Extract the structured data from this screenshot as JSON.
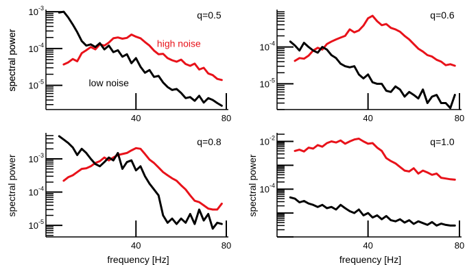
{
  "figure": {
    "xlabel": "frequency [Hz]",
    "ylabel": "spectral power"
  },
  "colors": {
    "high_noise": "#e8121a",
    "low_noise": "#000000"
  },
  "chart_data": [
    {
      "type": "line",
      "annotation": "q=0.5",
      "xlim": [
        5,
        80
      ],
      "ylog": true,
      "ylim": [
        2.2e-06,
        0.00105
      ],
      "yticks": [
        {
          "base": "10",
          "exp": "-3",
          "value": 0.001
        },
        {
          "base": "10",
          "exp": "-4",
          "value": 0.0001
        },
        {
          "base": "10",
          "exp": "-5",
          "value": 1e-05
        }
      ],
      "xticks": [
        {
          "label": "40",
          "value": 40
        },
        {
          "label": "80",
          "value": 80
        }
      ],
      "grid": false,
      "xlabel": "",
      "ylabel": "spectral power",
      "series_labels": [
        {
          "text": "high noise",
          "series": 0,
          "pos": [
            59,
            0.00011
          ]
        },
        {
          "text": "low noise",
          "series": 1,
          "pos": [
            28,
            9.5e-06
          ]
        }
      ],
      "series": [
        {
          "name": "high noise",
          "color": "#e8121a",
          "x": [
            8,
            10,
            12,
            14,
            16,
            18,
            20,
            22,
            24,
            26,
            28,
            30,
            32,
            34,
            36,
            38,
            40,
            42,
            44,
            46,
            48,
            50,
            52,
            54,
            56,
            58,
            60,
            62,
            64,
            66,
            68,
            70,
            72,
            74,
            76,
            78
          ],
          "y": [
            3.7e-05,
            4.2e-05,
            5.2e-05,
            4.5e-05,
            7.5e-05,
            9e-05,
            0.00011,
            9.5e-05,
            0.00013,
            0.00012,
            0.000145,
            0.00019,
            0.0002,
            0.000185,
            0.000195,
            0.00024,
            0.00021,
            0.00019,
            0.00015,
            0.00012,
            8.8e-05,
            7e-05,
            7.2e-05,
            5.5e-05,
            4.8e-05,
            4.4e-05,
            5e-05,
            3.8e-05,
            3.4e-05,
            3.9e-05,
            2.7e-05,
            3e-05,
            2.1e-05,
            1.9e-05,
            1.5e-05,
            1.4e-05
          ]
        },
        {
          "name": "low noise",
          "color": "#000000",
          "x": [
            6,
            8,
            10,
            12,
            14,
            16,
            18,
            20,
            22,
            24,
            26,
            28,
            30,
            32,
            34,
            36,
            38,
            40,
            42,
            44,
            46,
            48,
            50,
            52,
            54,
            56,
            58,
            60,
            62,
            64,
            66,
            68,
            70,
            72,
            74,
            76,
            78
          ],
          "y": [
            0.00095,
            0.001,
            0.0007,
            0.00045,
            0.00028,
            0.00016,
            0.00012,
            0.00013,
            0.00011,
            0.00014,
            9.5e-05,
            0.00012,
            8e-05,
            9e-05,
            6e-05,
            7e-05,
            4e-05,
            5.5e-05,
            3.2e-05,
            2.2e-05,
            2.6e-05,
            1.7e-05,
            1.8e-05,
            1.2e-05,
            9e-06,
            7.5e-06,
            8e-06,
            6.2e-06,
            4.5e-06,
            4.8e-06,
            3.8e-06,
            5.2e-06,
            3.4e-06,
            4.5e-06,
            4e-06,
            3.3e-06,
            2.8e-06
          ]
        }
      ]
    },
    {
      "type": "line",
      "annotation": "q=0.6",
      "xlim": [
        5,
        80
      ],
      "ylog": true,
      "ylim": [
        2e-06,
        0.00095
      ],
      "yticks": [
        {
          "base": "10",
          "exp": "-4",
          "value": 0.0001
        },
        {
          "base": "10",
          "exp": "-5",
          "value": 1e-05
        }
      ],
      "xticks": [
        {
          "label": "40",
          "value": 40
        },
        {
          "label": "80",
          "value": 80
        }
      ],
      "grid": false,
      "xlabel": "",
      "ylabel": "spectral power",
      "series_labels": [],
      "series": [
        {
          "name": "high noise",
          "color": "#e8121a",
          "x": [
            8,
            10,
            12,
            14,
            16,
            18,
            20,
            22,
            24,
            26,
            28,
            30,
            32,
            34,
            36,
            38,
            40,
            42,
            44,
            46,
            48,
            50,
            52,
            54,
            56,
            58,
            60,
            62,
            64,
            66,
            68,
            70,
            72,
            74,
            76,
            78
          ],
          "y": [
            4.2e-05,
            5e-05,
            4.8e-05,
            5.8e-05,
            8e-05,
            9.5e-05,
            8.5e-05,
            0.00012,
            0.00014,
            0.00016,
            0.00018,
            0.0002,
            0.0003,
            0.00025,
            0.00028,
            0.00038,
            0.0006,
            0.0007,
            0.0005,
            0.00039,
            0.00042,
            0.00033,
            0.0003,
            0.00026,
            0.0002,
            0.00016,
            0.00012,
            9e-05,
            7.5e-05,
            6e-05,
            5.5e-05,
            4.5e-05,
            4e-05,
            3.2e-05,
            3.4e-05,
            3.1e-05
          ]
        },
        {
          "name": "low noise",
          "color": "#000000",
          "x": [
            6,
            8,
            10,
            12,
            14,
            16,
            18,
            20,
            22,
            24,
            26,
            28,
            30,
            32,
            34,
            36,
            38,
            40,
            42,
            44,
            46,
            48,
            50,
            52,
            54,
            56,
            58,
            60,
            62,
            64,
            66,
            68,
            70,
            72,
            74,
            76,
            78
          ],
          "y": [
            0.00014,
            0.00011,
            8e-05,
            0.00013,
            0.0001,
            8e-05,
            7e-05,
            0.0001,
            8.5e-05,
            6e-05,
            5e-05,
            3.5e-05,
            3e-05,
            2.8e-05,
            3e-05,
            1.8e-05,
            1.4e-05,
            1.8e-05,
            1.1e-05,
            1e-05,
            1e-05,
            6.5e-06,
            6e-06,
            8.5e-06,
            7e-06,
            4.5e-06,
            6e-06,
            5e-06,
            4e-06,
            7e-06,
            3e-06,
            4.5e-06,
            5e-06,
            3e-06,
            3e-06,
            2.2e-06,
            5e-06
          ]
        }
      ]
    },
    {
      "type": "line",
      "annotation": "q=0.8",
      "xlim": [
        5,
        80
      ],
      "ylog": true,
      "ylim": [
        4.5e-06,
        0.0055
      ],
      "yticks": [
        {
          "base": "10",
          "exp": "-3",
          "value": 0.001
        },
        {
          "base": "10",
          "exp": "-4",
          "value": 0.0001
        },
        {
          "base": "10",
          "exp": "-5",
          "value": 1e-05
        }
      ],
      "xticks": [
        {
          "label": "40",
          "value": 40
        },
        {
          "label": "80",
          "value": 80
        }
      ],
      "grid": false,
      "xlabel": "frequency [Hz]",
      "ylabel": "spectral power",
      "series_labels": [],
      "series": [
        {
          "name": "high noise",
          "color": "#e8121a",
          "x": [
            8,
            10,
            12,
            14,
            16,
            18,
            20,
            22,
            24,
            26,
            28,
            30,
            32,
            34,
            36,
            38,
            40,
            42,
            44,
            46,
            48,
            50,
            52,
            54,
            56,
            58,
            60,
            62,
            64,
            66,
            68,
            70,
            72,
            74,
            76,
            78
          ],
          "y": [
            0.00022,
            0.00028,
            0.00032,
            0.0004,
            0.0005,
            0.00052,
            0.0006,
            0.00075,
            0.00085,
            0.0011,
            0.0009,
            0.0011,
            0.0013,
            0.0014,
            0.0015,
            0.0018,
            0.0021,
            0.002,
            0.0014,
            0.00095,
            0.00075,
            0.00055,
            0.0004,
            0.00032,
            0.00026,
            0.00022,
            0.00016,
            0.00012,
            8e-05,
            5.5e-05,
            5e-05,
            4e-05,
            3.2e-05,
            3e-05,
            3e-05,
            4.5e-05
          ]
        },
        {
          "name": "low noise",
          "color": "#000000",
          "x": [
            6,
            8,
            10,
            12,
            14,
            16,
            18,
            20,
            22,
            24,
            26,
            28,
            30,
            32,
            34,
            36,
            38,
            40,
            42,
            44,
            46,
            48,
            50,
            52,
            54,
            56,
            58,
            60,
            62,
            64,
            66,
            68,
            70,
            72,
            74,
            76,
            78
          ],
          "y": [
            0.0048,
            0.0038,
            0.003,
            0.0022,
            0.0013,
            0.002,
            0.0015,
            0.001,
            0.0007,
            0.0006,
            0.0008,
            0.0011,
            0.0009,
            0.0015,
            0.0005,
            0.0008,
            0.0009,
            0.00045,
            0.0006,
            0.0003,
            0.00018,
            0.00012,
            8e-05,
            2e-05,
            1.2e-05,
            1.6e-05,
            1.1e-05,
            1.6e-05,
            1.2e-05,
            2.2e-05,
            1.1e-05,
            3e-05,
            1.4e-05,
            2.2e-05,
            8e-06,
            1.2e-05,
            1.1e-05
          ]
        }
      ]
    },
    {
      "type": "line",
      "annotation": "q=1.0",
      "xlim": [
        5,
        80
      ],
      "ylog": true,
      "ylim": [
        1e-06,
        0.02
      ],
      "yticks": [
        {
          "base": "10",
          "exp": "-2",
          "value": 0.01
        },
        {
          "base": "10",
          "exp": "-4",
          "value": 0.0001
        }
      ],
      "xticks": [
        {
          "label": "40",
          "value": 40
        },
        {
          "label": "80",
          "value": 80
        }
      ],
      "grid": false,
      "xlabel": "frequency [Hz]",
      "ylabel": "spectral power",
      "series_labels": [],
      "series": [
        {
          "name": "high noise",
          "color": "#e8121a",
          "x": [
            8,
            10,
            12,
            14,
            16,
            18,
            20,
            22,
            24,
            26,
            28,
            30,
            32,
            34,
            36,
            38,
            40,
            42,
            44,
            46,
            48,
            50,
            52,
            54,
            56,
            58,
            60,
            62,
            64,
            66,
            68,
            70,
            72,
            74,
            76,
            78
          ],
          "y": [
            0.004,
            0.0045,
            0.0038,
            0.0055,
            0.005,
            0.007,
            0.006,
            0.0085,
            0.01,
            0.009,
            0.011,
            0.008,
            0.01,
            0.012,
            0.013,
            0.01,
            0.008,
            0.0085,
            0.0055,
            0.004,
            0.002,
            0.0015,
            0.0012,
            0.00085,
            0.0006,
            0.00055,
            0.00075,
            0.00045,
            0.0006,
            0.0005,
            0.0004,
            0.00045,
            0.0003,
            0.00028,
            0.00026,
            0.00025
          ]
        },
        {
          "name": "low noise",
          "color": "#000000",
          "x": [
            6,
            8,
            10,
            12,
            14,
            16,
            18,
            20,
            22,
            24,
            26,
            28,
            30,
            32,
            34,
            36,
            38,
            40,
            42,
            44,
            46,
            48,
            50,
            52,
            54,
            56,
            58,
            60,
            62,
            64,
            66,
            68,
            70,
            72,
            74,
            76,
            78
          ],
          "y": [
            4.5e-05,
            4e-05,
            2.8e-05,
            3.2e-05,
            2.5e-05,
            2.2e-05,
            1.8e-05,
            2.2e-05,
            1.6e-05,
            1.8e-05,
            1.4e-05,
            2.2e-05,
            1.6e-05,
            1.2e-05,
            1e-05,
            1.4e-05,
            8e-06,
            1e-05,
            6.5e-06,
            8e-06,
            5.5e-06,
            7.5e-06,
            5e-06,
            4.5e-06,
            5.5e-06,
            4e-06,
            5e-06,
            3.5e-06,
            4.5e-06,
            3.8e-06,
            3.2e-06,
            4.2e-06,
            3e-06,
            3.6e-06,
            3.2e-06,
            3e-06,
            3e-06
          ]
        }
      ]
    }
  ]
}
